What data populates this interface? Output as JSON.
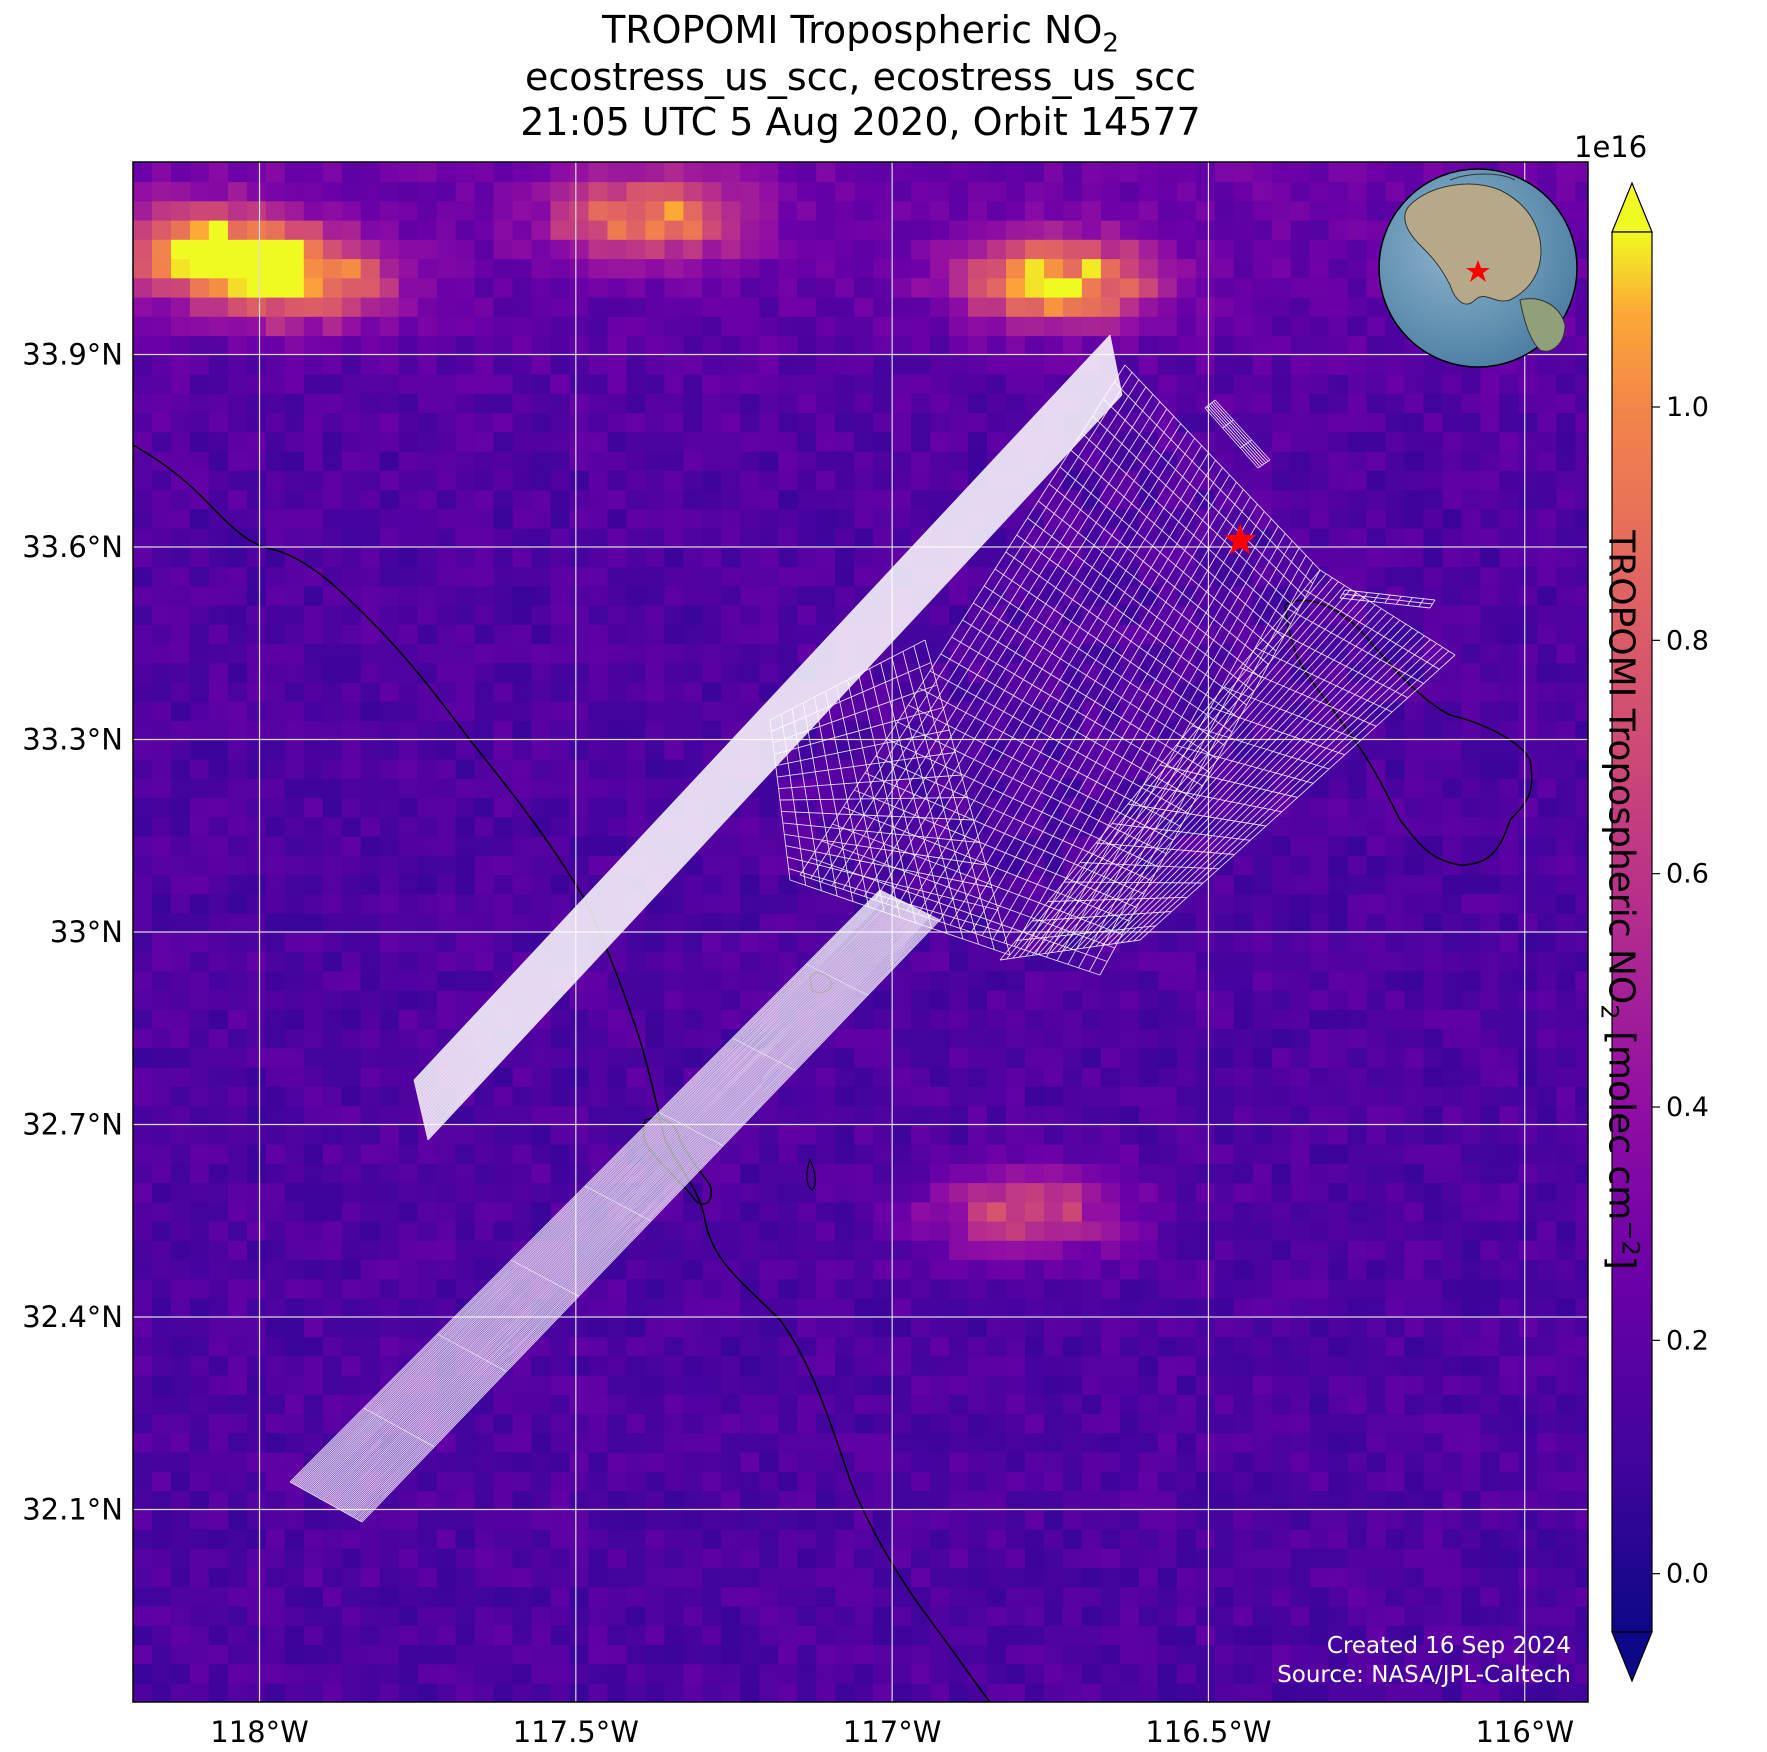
{
  "title": {
    "line1_prefix": "TROPOMI Tropospheric NO",
    "line1_sub": "2",
    "line2": "ecostress_us_scc, ecostress_us_scc",
    "line3": "21:05 UTC 5 Aug 2020, Orbit 14577"
  },
  "chart_data": {
    "type": "heatmap",
    "variable": "TROPOMI Tropospheric NO2",
    "units": "molec cm^-2",
    "extent": {
      "lon_min": -118.2,
      "lon_max": -115.9,
      "lat_min": 31.8,
      "lat_max": 34.2
    },
    "lon_ticks": [
      -118.0,
      -117.5,
      -117.0,
      -116.5,
      -116.0
    ],
    "lat_ticks": [
      33.9,
      33.6,
      33.3,
      33.0,
      32.7,
      32.4,
      32.1
    ],
    "lon_tick_labels": [
      "118°W",
      "117.5°W",
      "117°W",
      "116.5°W",
      "116°W"
    ],
    "lat_tick_labels": [
      "33.9°N",
      "33.6°N",
      "33.3°N",
      "33°N",
      "32.7°N",
      "32.4°N",
      "32.1°N"
    ],
    "grid": true,
    "colormap": "plasma",
    "colorbar": {
      "vmin": -0.05,
      "vmax": 1.15,
      "extend": "both",
      "ticks": [
        0.0,
        0.2,
        0.4,
        0.6,
        0.8,
        1.0
      ],
      "tick_labels": [
        "0.0",
        "0.2",
        "0.4",
        "0.6",
        "0.8",
        "1.0"
      ],
      "multiplier": "1e16",
      "label_prefix": "TROPOMI Tropospheric NO",
      "label_sub": "2",
      "label_mid": " [molec cm",
      "label_sup": "−2",
      "label_suffix": "]"
    },
    "hotspots_1e16": [
      {
        "lon": -118.1,
        "lat": 34.05,
        "value": 1.05
      },
      {
        "lon": -117.95,
        "lat": 34.0,
        "value": 0.95
      },
      {
        "lon": -117.4,
        "lat": 34.1,
        "value": 0.9
      },
      {
        "lon": -116.75,
        "lat": 34.0,
        "value": 1.1
      },
      {
        "lon": -116.8,
        "lat": 32.55,
        "value": 0.7
      }
    ],
    "target": {
      "lon": -116.45,
      "lat": 33.61,
      "marker": "red star"
    }
  },
  "inset": {
    "description_icon": "globe-inset-icon"
  },
  "footer": {
    "created": "Created 16 Sep 2024",
    "source": "Source: NASA/JPL-Caltech"
  },
  "colors": {
    "target": "#ff0000",
    "grid": "#d9d9d9",
    "footprint": "#ffffff"
  }
}
